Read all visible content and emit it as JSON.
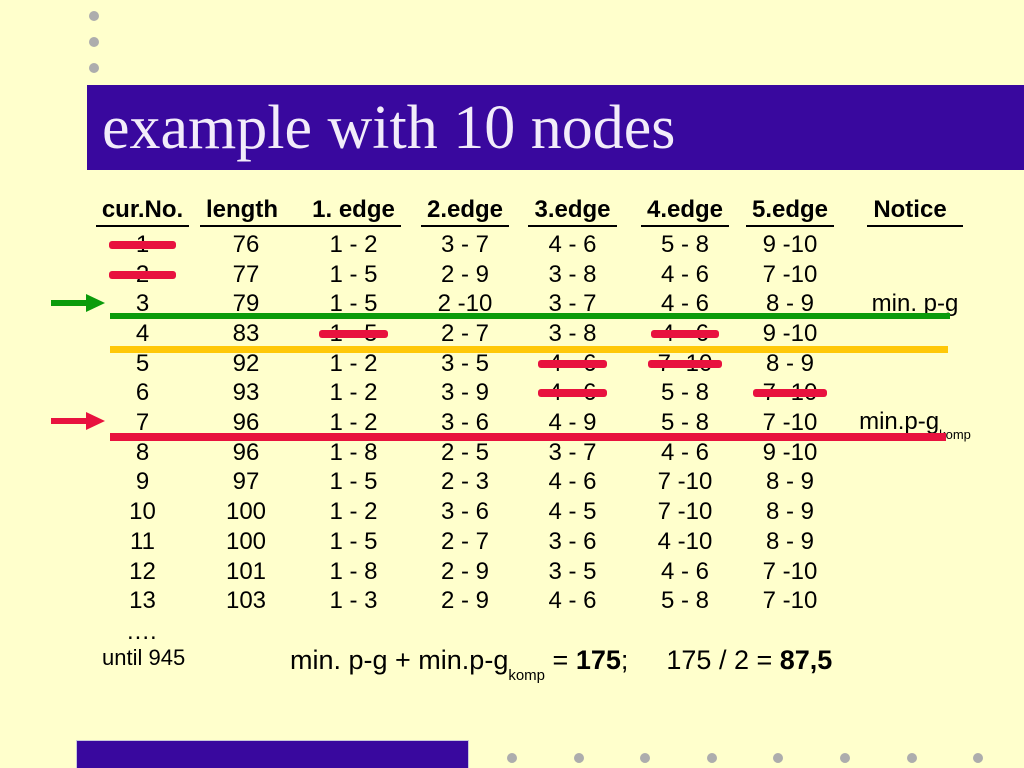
{
  "slide": {
    "title": "example with 10 nodes",
    "colors": {
      "background": "#FFFFCC",
      "title-bar": "#39089E",
      "title-text": "#F2ECFA",
      "text": "#000000",
      "red": "#E8123E",
      "green": "#0B9B0B",
      "yellow": "#FFC808",
      "dot-gray": "#ADADAD"
    }
  },
  "table": {
    "headers": [
      "cur.No.",
      "length",
      "1. edge",
      "2.edge",
      "3.edge",
      "4.edge",
      "5.edge",
      "Notice"
    ],
    "rows": [
      {
        "no": "1",
        "length": "76",
        "e1": "1 - 2",
        "e2": "3 - 7",
        "e3": "4 - 6",
        "e4": "5 - 8",
        "e5": "9 -10",
        "notice": "",
        "strikes": [
          "no"
        ]
      },
      {
        "no": "2",
        "length": "77",
        "e1": "1 - 5",
        "e2": "2 - 9",
        "e3": "3 - 8",
        "e4": "4 - 6",
        "e5": "7 -10",
        "notice": "",
        "strikes": [
          "no"
        ]
      },
      {
        "no": "3",
        "length": "79",
        "e1": "1 - 5",
        "e2": "2 -10",
        "e3": "3 - 7",
        "e4": "4 - 6",
        "e5": "8 - 9",
        "notice": "min. p-g",
        "strikes": []
      },
      {
        "no": "4",
        "length": "83",
        "e1": "1 - 5",
        "e2": "2 - 7",
        "e3": "3 - 8",
        "e4": "4 - 6",
        "e5": "9 -10",
        "notice": "",
        "strikes": [
          "e1",
          "e4"
        ]
      },
      {
        "no": "5",
        "length": "92",
        "e1": "1 - 2",
        "e2": "3 - 5",
        "e3": "4 - 6",
        "e4": "7 -10",
        "e5": "8 - 9",
        "notice": "",
        "strikes": [
          "e3",
          "e4"
        ]
      },
      {
        "no": "6",
        "length": "93",
        "e1": "1 - 2",
        "e2": "3 - 9",
        "e3": "4 - 6",
        "e4": "5 - 8",
        "e5": "7 -10",
        "notice": "",
        "strikes": [
          "e3",
          "e5"
        ]
      },
      {
        "no": "7",
        "length": "96",
        "e1": "1 - 2",
        "e2": "3 - 6",
        "e3": "4 - 9",
        "e4": "5 - 8",
        "e5": "7 -10",
        "notice": "min.p-g",
        "notice_sub": "komp",
        "strikes": []
      },
      {
        "no": "8",
        "length": "96",
        "e1": "1 - 8",
        "e2": "2 - 5",
        "e3": "3 - 7",
        "e4": "4 - 6",
        "e5": "9 -10",
        "notice": "",
        "strikes": []
      },
      {
        "no": "9",
        "length": "97",
        "e1": "1 - 5",
        "e2": "2 - 3",
        "e3": "4 - 6",
        "e4": "7 -10",
        "e5": "8 - 9",
        "notice": "",
        "strikes": []
      },
      {
        "no": "10",
        "length": "100",
        "e1": "1 - 2",
        "e2": "3 - 6",
        "e3": "4 - 5",
        "e4": "7 -10",
        "e5": "8 - 9",
        "notice": "",
        "strikes": []
      },
      {
        "no": "11",
        "length": "100",
        "e1": "1 - 5",
        "e2": "2 - 7",
        "e3": "3 - 6",
        "e4": "4 -10",
        "e5": "8 - 9",
        "notice": "",
        "strikes": []
      },
      {
        "no": "12",
        "length": "101",
        "e1": "1 - 8",
        "e2": "2 - 9",
        "e3": "3 - 5",
        "e4": "4 - 6",
        "e5": "7 -10",
        "notice": "",
        "strikes": []
      },
      {
        "no": "13",
        "length": "103",
        "e1": "1 - 3",
        "e2": "2 - 9",
        "e3": "4 - 6",
        "e4": "5 - 8",
        "e5": "7 -10",
        "notice": "",
        "strikes": []
      }
    ],
    "ellipsis": "....",
    "until_label": "until 945"
  },
  "equation": {
    "lhs": "min. p-g + min.p-g",
    "lhs_sub": "komp",
    "equals": " = ",
    "result": "175",
    "separator": ";",
    "rhs": "175 / 2 = ",
    "rhs_result": "87,5"
  }
}
